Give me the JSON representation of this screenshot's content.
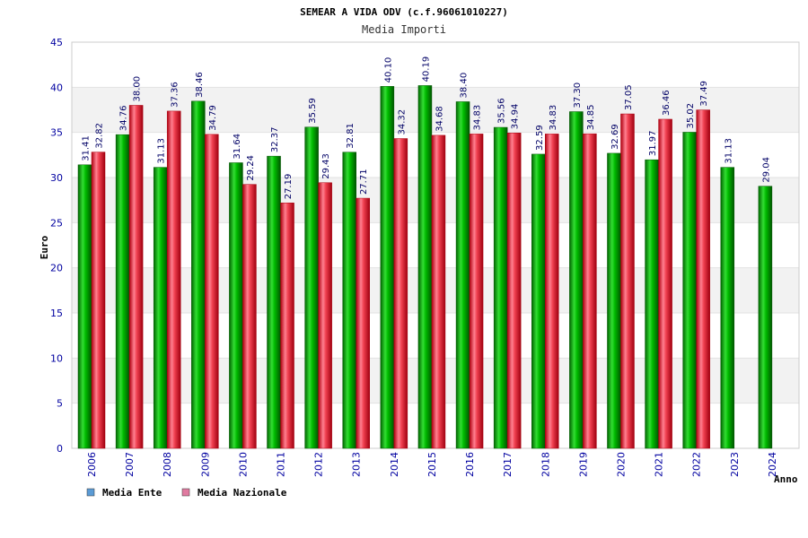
{
  "chart_data": {
    "type": "bar",
    "title": "SEMEAR A VIDA ODV (c.f.96061010227)",
    "subtitle": "Media Importi",
    "xlabel": "Anno",
    "ylabel": "Euro",
    "ylim": [
      0,
      45
    ],
    "yticks": [
      0,
      5,
      10,
      15,
      20,
      25,
      30,
      35,
      40,
      45
    ],
    "grid": true,
    "legend_position": "bottom-left",
    "categories": [
      "2006",
      "2007",
      "2008",
      "2009",
      "2010",
      "2011",
      "2012",
      "2013",
      "2014",
      "2015",
      "2016",
      "2017",
      "2018",
      "2019",
      "2020",
      "2021",
      "2022",
      "2023",
      "2024"
    ],
    "series": [
      {
        "name": "Media Ente",
        "legend_color": "#5b9bd5",
        "bar_color": "#00aa00",
        "values": [
          31.41,
          34.76,
          31.13,
          38.46,
          31.64,
          32.37,
          35.59,
          32.81,
          40.1,
          40.19,
          38.4,
          35.56,
          32.59,
          37.3,
          32.69,
          31.97,
          35.02,
          31.13,
          29.04
        ],
        "labels": [
          "31.41",
          "34.76",
          "31.13",
          "38.46",
          "31.64",
          "32.37",
          "35.59",
          "32.81",
          "40.10",
          "40.19",
          "38.40",
          "35.56",
          "32.59",
          "37.30",
          "32.69",
          "31.97",
          "35.02",
          "31.13",
          "29.04"
        ]
      },
      {
        "name": "Media Nazionale",
        "legend_color": "#e07aa0",
        "bar_color": "#e8202a",
        "values": [
          32.82,
          38.0,
          37.36,
          34.79,
          29.24,
          27.19,
          29.43,
          27.71,
          34.32,
          34.68,
          34.83,
          34.94,
          34.83,
          34.85,
          37.05,
          36.46,
          37.49,
          null,
          null
        ],
        "labels": [
          "32.82",
          "38.00",
          "37.36",
          "34.79",
          "29.24",
          "27.19",
          "29.43",
          "27.71",
          "34.32",
          "34.68",
          "34.83",
          "34.94",
          "34.83",
          "34.85",
          "37.05",
          "36.46",
          "37.49",
          null,
          null
        ]
      }
    ]
  }
}
